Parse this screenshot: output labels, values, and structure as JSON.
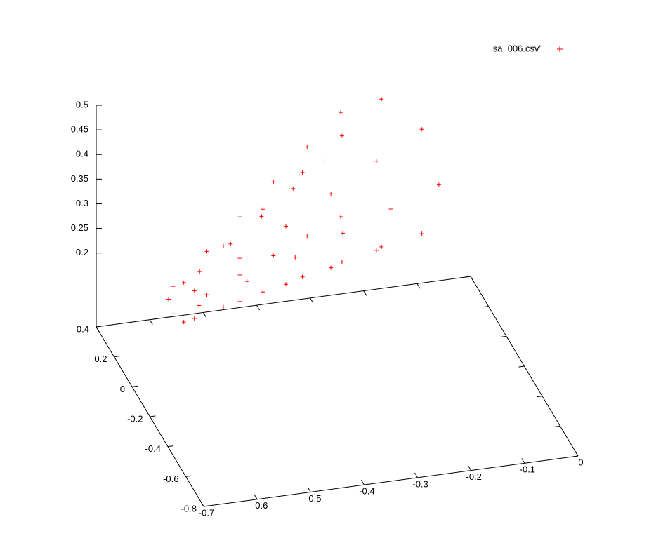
{
  "chart_data": {
    "type": "scatter3d",
    "series": [
      {
        "name": "'sa_006.csv'",
        "color": "#ff0000",
        "marker": "+",
        "x": [
          -0.62,
          -0.636,
          -0.643,
          -0.636,
          -0.62,
          -0.604,
          -0.597,
          -0.604,
          -0.536,
          -0.561,
          -0.572,
          -0.561,
          -0.536,
          -0.511,
          -0.5,
          -0.511,
          -0.452,
          -0.487,
          -0.501,
          -0.487,
          -0.452,
          -0.417,
          -0.403,
          -0.417,
          -0.368,
          -0.412,
          -0.43,
          -0.412,
          -0.368,
          -0.325,
          -0.307,
          -0.325,
          -0.284,
          -0.337,
          -0.358,
          -0.337,
          -0.284,
          -0.232,
          -0.21,
          -0.232,
          -0.2,
          -0.262,
          -0.287,
          -0.262,
          -0.2,
          -0.139,
          -0.113,
          -0.139
        ],
        "y": [
          -0.1,
          -0.077,
          -0.068,
          -0.077,
          -0.1,
          -0.123,
          -0.132,
          -0.123,
          -0.04,
          -0.005,
          0.01,
          -0.005,
          -0.04,
          -0.075,
          -0.09,
          -0.075,
          0.02,
          0.068,
          0.088,
          0.068,
          0.02,
          -0.028,
          -0.048,
          -0.028,
          0.08,
          0.141,
          0.166,
          0.141,
          0.08,
          0.019,
          -0.006,
          0.019,
          0.14,
          0.213,
          0.244,
          0.213,
          0.14,
          0.067,
          0.036,
          0.067,
          0.2,
          0.286,
          0.322,
          0.286,
          0.2,
          0.114,
          0.079,
          0.114
        ],
        "z": [
          0.28,
          0.268,
          0.24,
          0.212,
          0.2,
          0.212,
          0.24,
          0.268,
          0.324,
          0.306,
          0.262,
          0.218,
          0.2,
          0.218,
          0.262,
          0.306,
          0.368,
          0.343,
          0.284,
          0.225,
          0.2,
          0.225,
          0.284,
          0.343,
          0.412,
          0.381,
          0.306,
          0.231,
          0.2,
          0.231,
          0.306,
          0.381,
          0.456,
          0.419,
          0.328,
          0.238,
          0.2,
          0.238,
          0.328,
          0.419,
          0.5,
          0.456,
          0.35,
          0.244,
          0.2,
          0.244,
          0.35,
          0.456
        ]
      }
    ],
    "xlim": [
      -0.7,
      0
    ],
    "ylim": [
      -0.8,
      0.4
    ],
    "zlim": [
      0.2,
      0.5
    ],
    "xticks": [
      -0.7,
      -0.6,
      -0.5,
      -0.4,
      -0.3,
      -0.2,
      -0.1,
      0
    ],
    "yticks": [
      -0.8,
      -0.6,
      -0.4,
      -0.2,
      0,
      0.2,
      0.4
    ],
    "zticks": [
      0.2,
      0.25,
      0.3,
      0.35,
      0.4,
      0.45,
      0.5
    ],
    "ticslevel": 0.5,
    "legend": "top right"
  }
}
